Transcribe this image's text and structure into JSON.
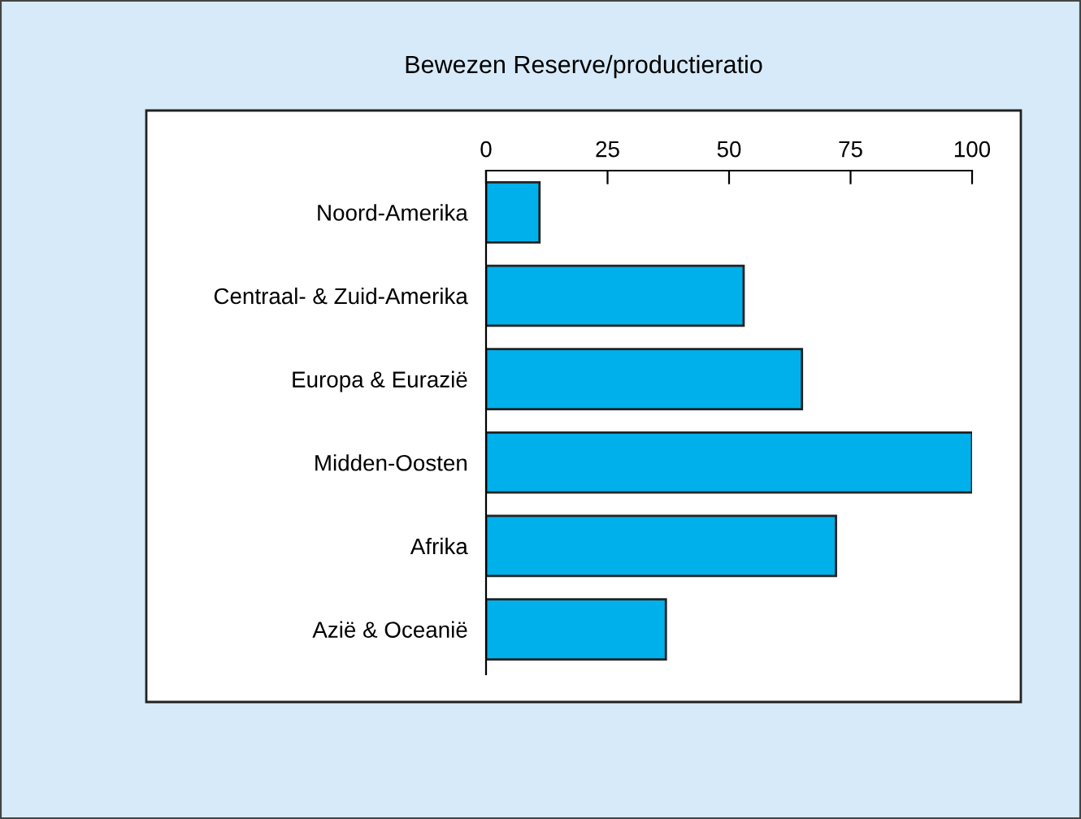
{
  "chart_data": {
    "type": "bar",
    "orientation": "horizontal",
    "title": "Bewezen Reserve/productieratio",
    "categories": [
      "Noord-Amerika",
      "Centraal- & Zuid-Amerika",
      "Europa & Eurazië",
      "Midden-Oosten",
      "Afrika",
      "Azië & Oceanië"
    ],
    "values": [
      11,
      53,
      65,
      100,
      72,
      37
    ],
    "color": "#00b0ea",
    "xlim": [
      0,
      100
    ],
    "xticks": [
      0,
      25,
      50,
      75,
      100
    ],
    "grid": false
  }
}
